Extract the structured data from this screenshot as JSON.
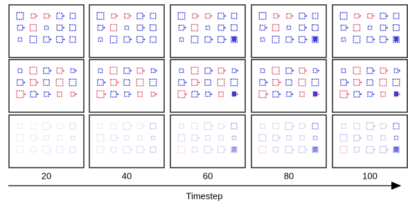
{
  "columns": [
    "20",
    "40",
    "60",
    "80",
    "100"
  ],
  "axis_label": "Timestep"
}
